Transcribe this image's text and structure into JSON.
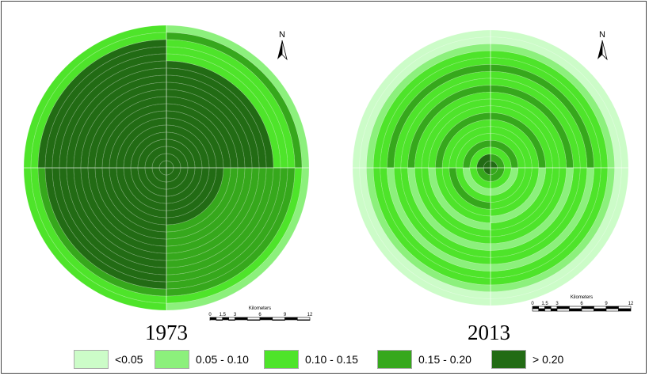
{
  "maps": [
    {
      "year": "1973",
      "sectors": [
        [
          "0.05 - 0.10",
          "0.15 - 0.20",
          "0.10 - 0.15",
          "0.10 - 0.15",
          "0.10 - 0.15",
          "> 0.20",
          "> 0.20",
          "> 0.20",
          "> 0.20",
          "> 0.20",
          "> 0.20",
          "> 0.20",
          "> 0.20",
          "> 0.20",
          "> 0.20",
          "> 0.20",
          "> 0.20",
          "> 0.20",
          "> 0.20",
          "> 0.20"
        ],
        [
          "0.05 - 0.10",
          "0.10 - 0.15",
          "0.15 - 0.20",
          "0.15 - 0.20",
          "0.15 - 0.20",
          "0.15 - 0.20",
          "0.15 - 0.20",
          "0.15 - 0.20",
          "0.15 - 0.20",
          "0.15 - 0.20",
          "0.15 - 0.20",
          "0.15 - 0.20",
          "> 0.20",
          "> 0.20",
          "> 0.20",
          "> 0.20",
          "> 0.20",
          "> 0.20",
          "> 0.20",
          "> 0.20"
        ],
        [
          "0.10 - 0.15",
          "0.10 - 0.15",
          "0.15 - 0.20",
          "> 0.20",
          "> 0.20",
          "> 0.20",
          "> 0.20",
          "> 0.20",
          "> 0.20",
          "> 0.20",
          "> 0.20",
          "> 0.20",
          "> 0.20",
          "> 0.20",
          "> 0.20",
          "> 0.20",
          "> 0.20",
          "> 0.20",
          "> 0.20",
          "> 0.20"
        ],
        [
          "0.10 - 0.15",
          "0.10 - 0.15",
          "> 0.20",
          "> 0.20",
          "> 0.20",
          "> 0.20",
          "> 0.20",
          "> 0.20",
          "> 0.20",
          "> 0.20",
          "> 0.20",
          "> 0.20",
          "> 0.20",
          "> 0.20",
          "> 0.20",
          "> 0.20",
          "> 0.20",
          "> 0.20",
          "> 0.20",
          "> 0.20"
        ]
      ]
    },
    {
      "year": "2013",
      "sectors": [
        [
          "<0.05",
          "<0.05",
          "0.05 - 0.10",
          "0.10 - 0.15",
          "0.10 - 0.15",
          "0.15 - 0.20",
          "0.10 - 0.15",
          "0.10 - 0.15",
          "0.15 - 0.20",
          "0.10 - 0.15",
          "0.10 - 0.15",
          "0.10 - 0.15",
          "0.15 - 0.20",
          "0.10 - 0.15",
          "0.10 - 0.15",
          "0.10 - 0.15",
          "0.15 - 0.20",
          "0.10 - 0.15",
          "0.15 - 0.20",
          "> 0.20"
        ],
        [
          "<0.05",
          "<0.05",
          "0.05 - 0.10",
          "0.10 - 0.15",
          "0.10 - 0.15",
          "0.05 - 0.10",
          "0.10 - 0.15",
          "0.10 - 0.15",
          "0.05 - 0.10",
          "0.10 - 0.15",
          "0.10 - 0.15",
          "0.10 - 0.15",
          "0.05 - 0.10",
          "0.10 - 0.15",
          "0.10 - 0.15",
          "0.10 - 0.15",
          "0.05 - 0.10",
          "0.10 - 0.15",
          "0.15 - 0.20",
          "0.15 - 0.20"
        ],
        [
          "<0.05",
          "<0.05",
          "0.05 - 0.10",
          "0.10 - 0.15",
          "0.10 - 0.15",
          "0.05 - 0.10",
          "0.10 - 0.15",
          "0.10 - 0.15",
          "0.05 - 0.10",
          "0.10 - 0.15",
          "0.10 - 0.15",
          "0.05 - 0.10",
          "0.10 - 0.15",
          "0.10 - 0.15",
          "0.15 - 0.20",
          "0.10 - 0.15",
          "0.05 - 0.10",
          "0.10 - 0.15",
          "0.15 - 0.20",
          "> 0.20"
        ],
        [
          "<0.05",
          "<0.05",
          "0.05 - 0.10",
          "0.10 - 0.15",
          "0.10 - 0.15",
          "0.15 - 0.20",
          "0.10 - 0.15",
          "0.10 - 0.15",
          "0.15 - 0.20",
          "0.10 - 0.15",
          "0.10 - 0.15",
          "0.10 - 0.15",
          "0.15 - 0.20",
          "0.10 - 0.15",
          "0.10 - 0.15",
          "0.10 - 0.15",
          "0.15 - 0.20",
          "0.10 - 0.15",
          "> 0.20",
          "> 0.20"
        ]
      ]
    }
  ],
  "north_label": "N",
  "scalebar": {
    "unit": "Kilometers",
    "ticks": [
      "0",
      "1.5",
      "3",
      "6",
      "9",
      "12"
    ],
    "tick_values": [
      0,
      1.5,
      3,
      6,
      9,
      12
    ]
  },
  "legend": [
    {
      "label": "<0.05",
      "color": "#ccfcc8"
    },
    {
      "label": "0.05 - 0.10",
      "color": "#8cf07c"
    },
    {
      "label": "0.10 - 0.15",
      "color": "#4ee42a"
    },
    {
      "label": "0.15 - 0.20",
      "color": "#36a81c"
    },
    {
      "label": "> 0.20",
      "color": "#226b14"
    }
  ]
}
